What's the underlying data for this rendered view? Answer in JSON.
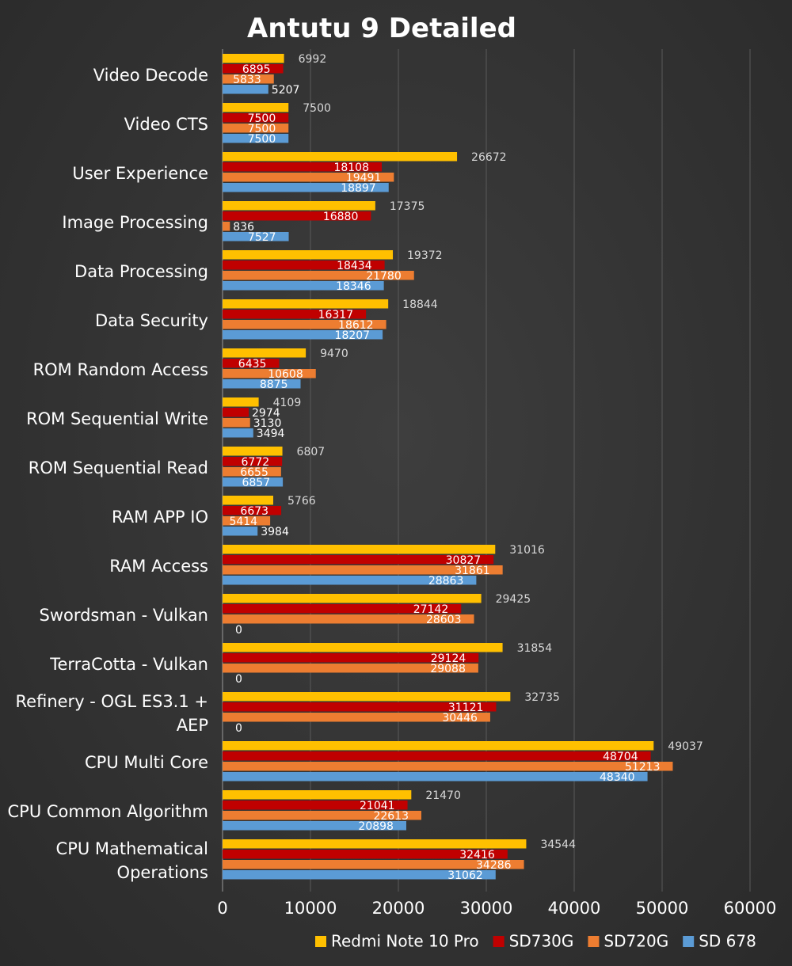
{
  "chart_data": {
    "type": "bar",
    "orientation": "horizontal",
    "title": "Antutu 9 Detailed",
    "categories": [
      "Video Decode",
      "Video CTS",
      "User Experience",
      "Image Processing",
      "Data Processing",
      "Data Security",
      "ROM Random Access",
      "ROM Sequential Write",
      "ROM Sequential Read",
      "RAM APP IO",
      "RAM Access",
      "Swordsman - Vulkan",
      "TerraCotta - Vulkan",
      "Refinery - OGL ES3.1 + AEP",
      "CPU Multi Core",
      "CPU Common Algorithm",
      "CPU Mathematical Operations"
    ],
    "series": [
      {
        "name": "Redmi Note 10 Pro",
        "color": "#FFC000",
        "values": [
          6992,
          7500,
          26672,
          17375,
          19372,
          18844,
          9470,
          4109,
          6807,
          5766,
          31016,
          29425,
          31854,
          32735,
          49037,
          21470,
          34544
        ]
      },
      {
        "name": "SD730G",
        "color": "#C00000",
        "values": [
          6895,
          7500,
          18108,
          16880,
          18434,
          16317,
          6435,
          2974,
          6772,
          6673,
          30827,
          27142,
          29124,
          31121,
          48704,
          21041,
          32416
        ]
      },
      {
        "name": "SD720G",
        "color": "#ED7D31",
        "values": [
          5833,
          7500,
          19491,
          836,
          21780,
          18612,
          10608,
          3130,
          6655,
          5414,
          31861,
          28603,
          29088,
          30446,
          51213,
          22613,
          34286
        ]
      },
      {
        "name": "SD 678",
        "color": "#5B9BD5",
        "values": [
          5207,
          7500,
          18897,
          7527,
          18346,
          18207,
          8875,
          3494,
          6857,
          3984,
          28863,
          0,
          0,
          0,
          48340,
          20898,
          31062
        ]
      }
    ],
    "xlim": [
      0,
      60000
    ],
    "xticks": [
      0,
      10000,
      20000,
      30000,
      40000,
      50000,
      60000
    ],
    "xlabel": "",
    "ylabel": "",
    "grid": "vertical",
    "legend": "bottom"
  }
}
